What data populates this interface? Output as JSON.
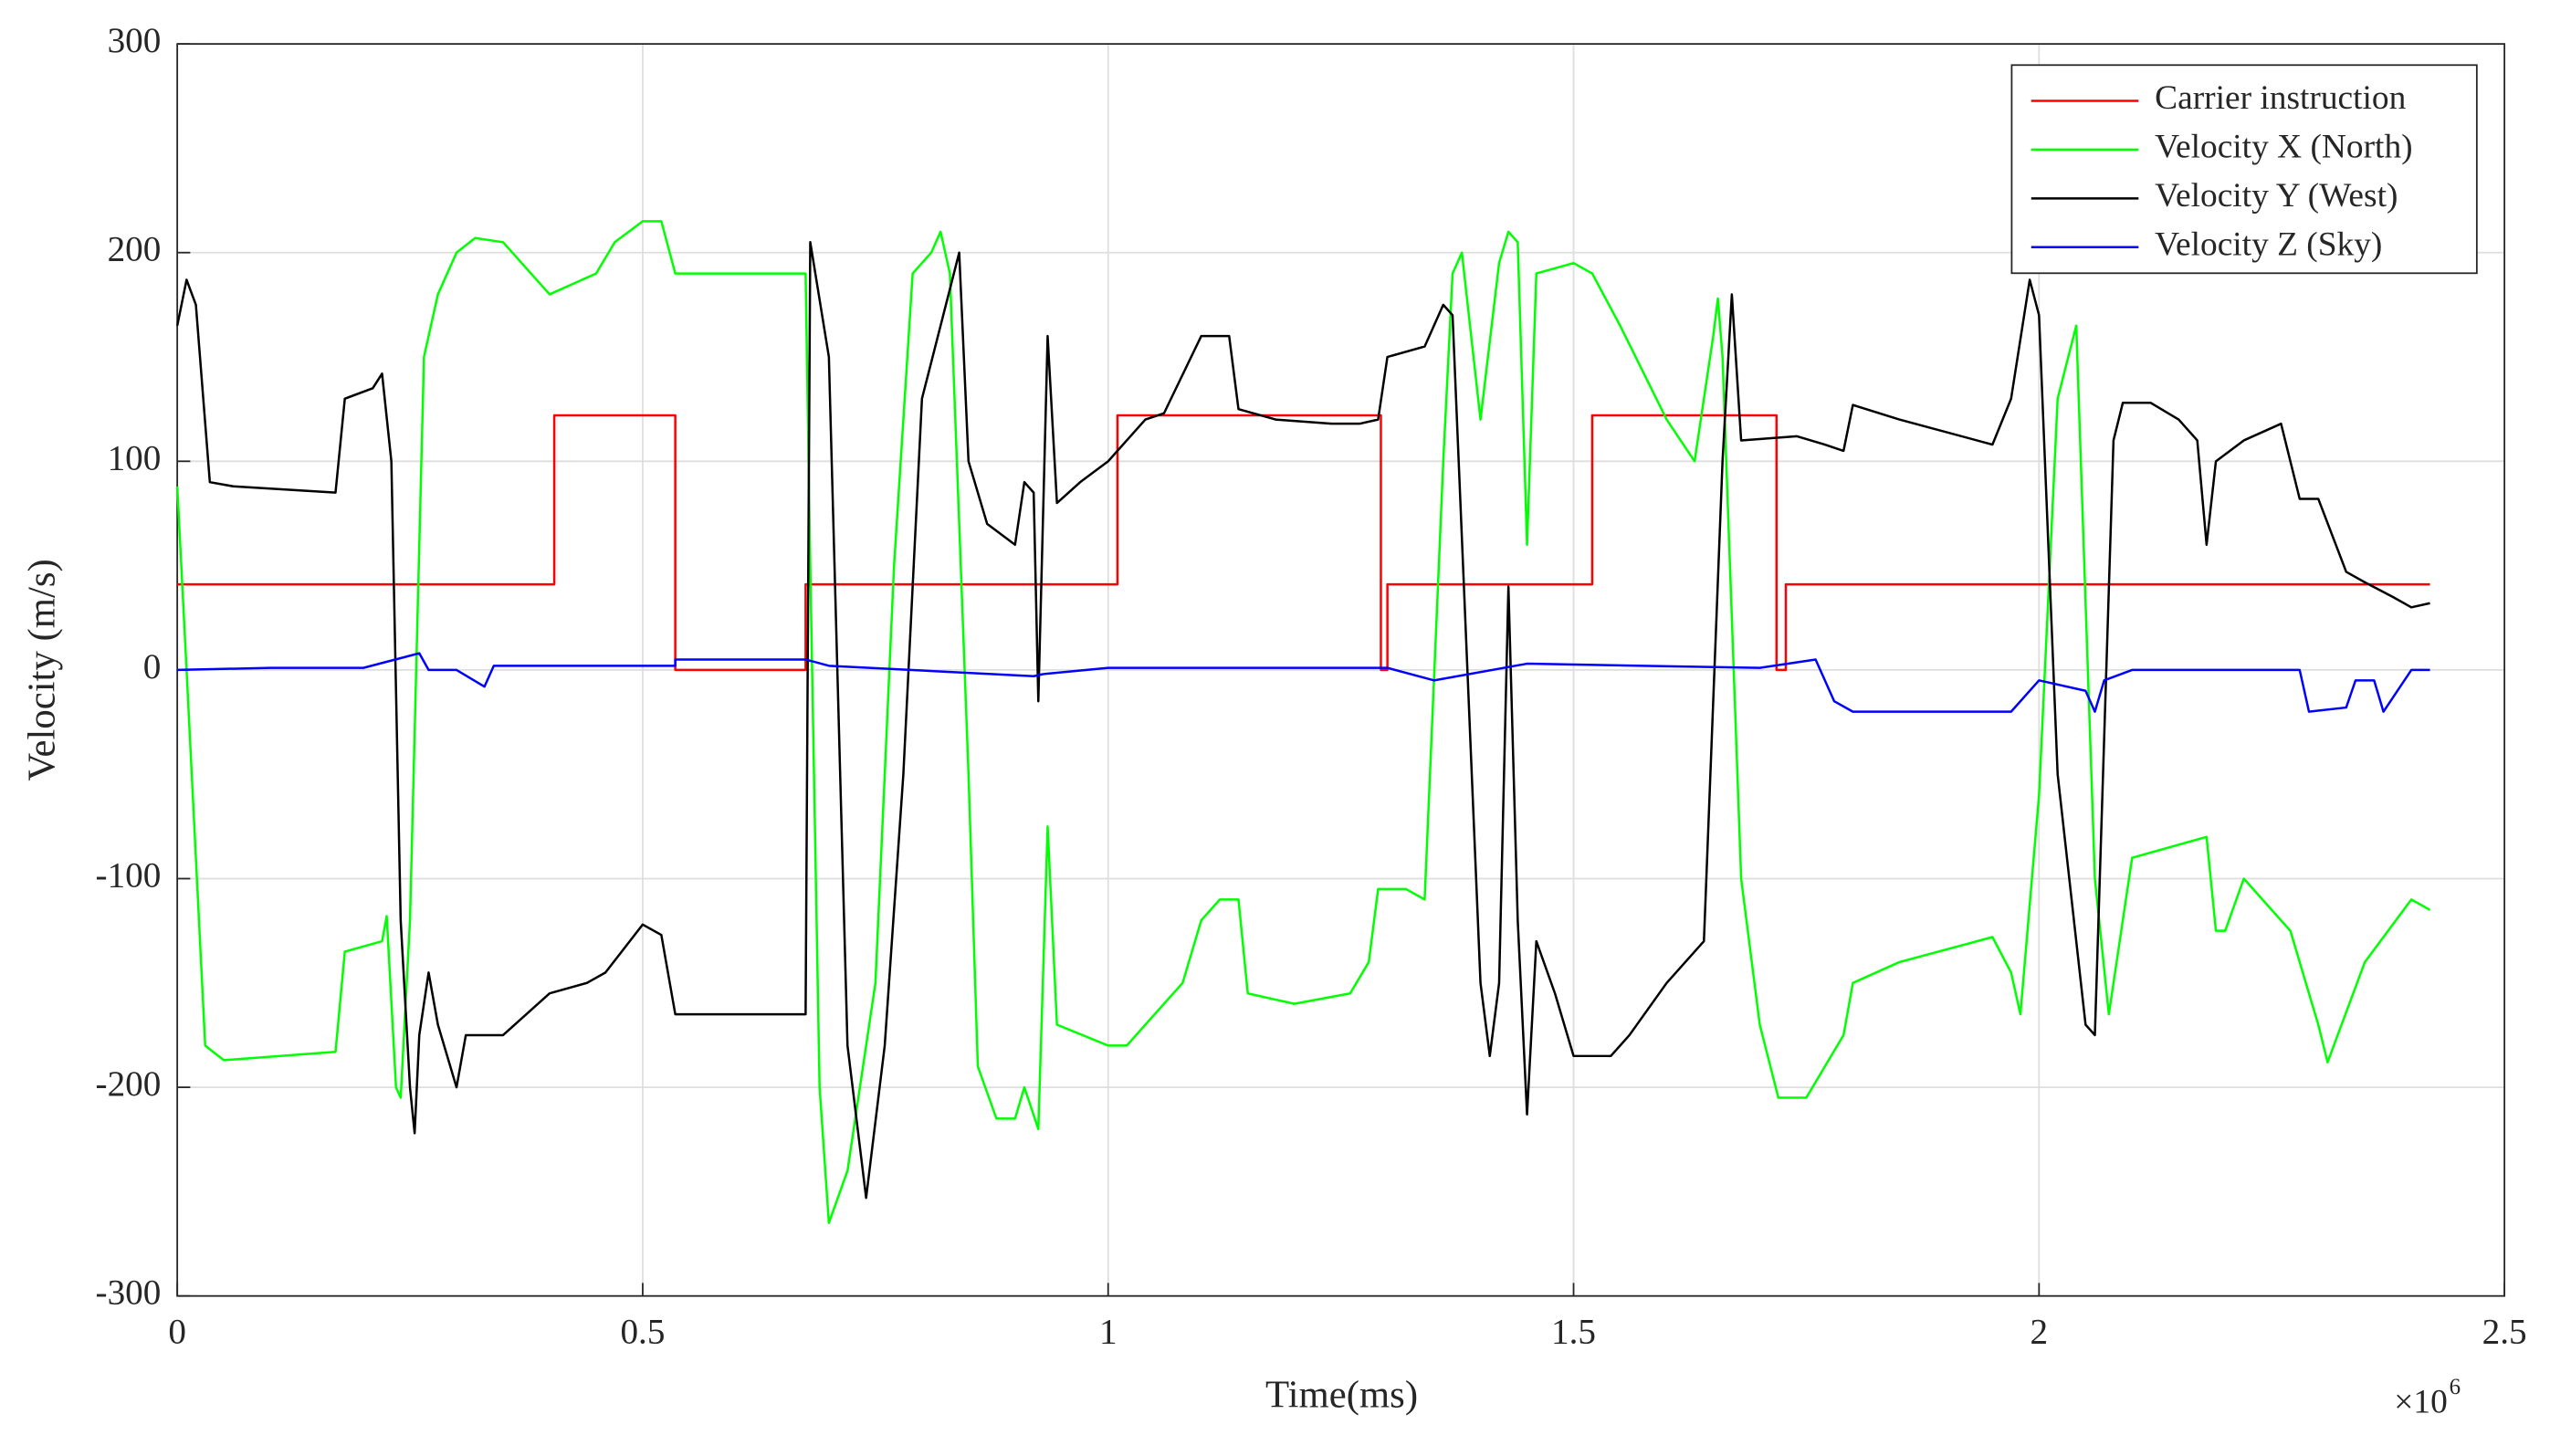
{
  "chart_data": {
    "type": "line",
    "x_label": "Time(ms)",
    "y_label": "Velocity  (m/s)",
    "x_multiplier": "×10",
    "x_multiplier_exponent": "6",
    "xlim": [
      0,
      2.5
    ],
    "xticks": [
      0,
      0.5,
      1,
      1.5,
      2,
      2.5
    ],
    "ylim": [
      -300,
      300
    ],
    "yticks": [
      -300,
      -200,
      -100,
      0,
      100,
      200,
      300
    ],
    "grid": true,
    "legend": "upper-right",
    "series": [
      {
        "name": "Carrier instruction",
        "color": "#ff0000",
        "x": [
          0,
          0.405,
          0.405,
          0.535,
          0.535,
          0.675,
          0.675,
          1.01,
          1.01,
          1.293,
          1.293,
          1.3,
          1.3,
          1.52,
          1.52,
          1.718,
          1.718,
          1.728,
          1.728,
          2.42
        ],
        "values": [
          41,
          41,
          122,
          122,
          0,
          0,
          41,
          41,
          122,
          122,
          0,
          0,
          41,
          41,
          122,
          122,
          0,
          0,
          41,
          41
        ]
      },
      {
        "name": "Velocity X (North)",
        "color": "#00ff00",
        "x": [
          0,
          0.01,
          0.03,
          0.05,
          0.17,
          0.18,
          0.22,
          0.225,
          0.235,
          0.24,
          0.25,
          0.265,
          0.28,
          0.3,
          0.32,
          0.35,
          0.4,
          0.45,
          0.47,
          0.5,
          0.52,
          0.535,
          0.675,
          0.68,
          0.69,
          0.7,
          0.72,
          0.75,
          0.77,
          0.79,
          0.81,
          0.82,
          0.83,
          0.85,
          0.86,
          0.88,
          0.9,
          0.91,
          0.925,
          0.935,
          0.945,
          1.0,
          1.02,
          1.05,
          1.08,
          1.1,
          1.12,
          1.14,
          1.15,
          1.2,
          1.26,
          1.28,
          1.29,
          1.32,
          1.34,
          1.36,
          1.37,
          1.38,
          1.4,
          1.42,
          1.43,
          1.44,
          1.45,
          1.46,
          1.5,
          1.52,
          1.55,
          1.6,
          1.63,
          1.65,
          1.655,
          1.66,
          1.68,
          1.7,
          1.72,
          1.75,
          1.79,
          1.8,
          1.85,
          1.95,
          1.97,
          1.98,
          2.0,
          2.02,
          2.04,
          2.06,
          2.075,
          2.1,
          2.18,
          2.19,
          2.2,
          2.22,
          2.27,
          2.3,
          2.31,
          2.35,
          2.4,
          2.42
        ],
        "values": [
          88,
          0,
          -180,
          -187,
          -183,
          -135,
          -130,
          -118,
          -200,
          -205,
          -120,
          150,
          180,
          200,
          207,
          205,
          180,
          190,
          205,
          215,
          215,
          190,
          190,
          50,
          -200,
          -265,
          -240,
          -150,
          50,
          190,
          200,
          210,
          190,
          -50,
          -190,
          -215,
          -215,
          -200,
          -220,
          -75,
          -170,
          -180,
          -180,
          -165,
          -150,
          -120,
          -110,
          -110,
          -155,
          -160,
          -155,
          -140,
          -105,
          -105,
          -110,
          100,
          190,
          200,
          120,
          195,
          210,
          205,
          60,
          190,
          195,
          190,
          165,
          120,
          100,
          160,
          178,
          150,
          -100,
          -170,
          -205,
          -205,
          -175,
          -150,
          -140,
          -128,
          -145,
          -165,
          -60,
          130,
          165,
          -100,
          -165,
          -90,
          -80,
          -125,
          -125,
          -100,
          -125,
          -170,
          -188,
          -140,
          -110,
          -115
        ]
      },
      {
        "name": "Velocity Y (West)",
        "color": "#000000",
        "x": [
          0,
          0.01,
          0.02,
          0.035,
          0.06,
          0.17,
          0.18,
          0.21,
          0.22,
          0.23,
          0.24,
          0.25,
          0.255,
          0.26,
          0.27,
          0.28,
          0.3,
          0.31,
          0.35,
          0.4,
          0.44,
          0.46,
          0.5,
          0.52,
          0.535,
          0.675,
          0.68,
          0.7,
          0.72,
          0.74,
          0.76,
          0.78,
          0.8,
          0.84,
          0.85,
          0.87,
          0.9,
          0.91,
          0.92,
          0.925,
          0.935,
          0.945,
          0.97,
          1.0,
          1.01,
          1.02,
          1.04,
          1.06,
          1.1,
          1.13,
          1.14,
          1.18,
          1.24,
          1.27,
          1.29,
          1.3,
          1.34,
          1.36,
          1.37,
          1.4,
          1.41,
          1.42,
          1.43,
          1.44,
          1.45,
          1.46,
          1.48,
          1.5,
          1.54,
          1.56,
          1.6,
          1.64,
          1.66,
          1.67,
          1.68,
          1.74,
          1.77,
          1.79,
          1.8,
          1.85,
          1.95,
          1.97,
          1.99,
          2.0,
          2.02,
          2.05,
          2.06,
          2.08,
          2.09,
          2.12,
          2.15,
          2.17,
          2.18,
          2.19,
          2.22,
          2.26,
          2.28,
          2.3,
          2.33,
          2.35,
          2.38,
          2.4,
          2.42
        ],
        "values": [
          165,
          187,
          175,
          90,
          88,
          85,
          130,
          135,
          142,
          100,
          -120,
          -200,
          -222,
          -175,
          -145,
          -170,
          -200,
          -175,
          -175,
          -155,
          -150,
          -145,
          -122,
          -127,
          -165,
          -165,
          205,
          150,
          -180,
          -253,
          -180,
          -50,
          130,
          200,
          100,
          70,
          60,
          90,
          85,
          -15,
          160,
          80,
          90,
          100,
          105,
          110,
          120,
          123,
          160,
          160,
          125,
          120,
          118,
          118,
          120,
          150,
          155,
          175,
          170,
          -150,
          -185,
          -150,
          40,
          -120,
          -213,
          -130,
          -155,
          -185,
          -185,
          -175,
          -150,
          -130,
          100,
          180,
          110,
          112,
          108,
          105,
          127,
          120,
          108,
          130,
          187,
          170,
          -50,
          -170,
          -175,
          110,
          128,
          128,
          120,
          110,
          60,
          100,
          110,
          118,
          82,
          82,
          47,
          42,
          35,
          30,
          32
        ]
      },
      {
        "name": "Velocity Z (Sky)",
        "color": "#0000ff",
        "x": [
          0,
          0.1,
          0.2,
          0.26,
          0.27,
          0.3,
          0.33,
          0.34,
          0.45,
          0.535,
          0.535,
          0.675,
          0.7,
          0.92,
          0.93,
          1.0,
          1.3,
          1.35,
          1.45,
          1.7,
          1.76,
          1.78,
          1.8,
          1.97,
          2.0,
          2.05,
          2.06,
          2.07,
          2.1,
          2.28,
          2.29,
          2.33,
          2.34,
          2.36,
          2.37,
          2.4,
          2.42
        ],
        "values": [
          0,
          1,
          1,
          8,
          0,
          0,
          -8,
          2,
          2,
          2,
          5,
          5,
          2,
          -3,
          -2,
          1,
          1,
          -5,
          3,
          1,
          5,
          -15,
          -20,
          -20,
          -5,
          -10,
          -20,
          -5,
          0,
          0,
          -20,
          -18,
          -5,
          -5,
          -20,
          0,
          0
        ]
      }
    ]
  }
}
